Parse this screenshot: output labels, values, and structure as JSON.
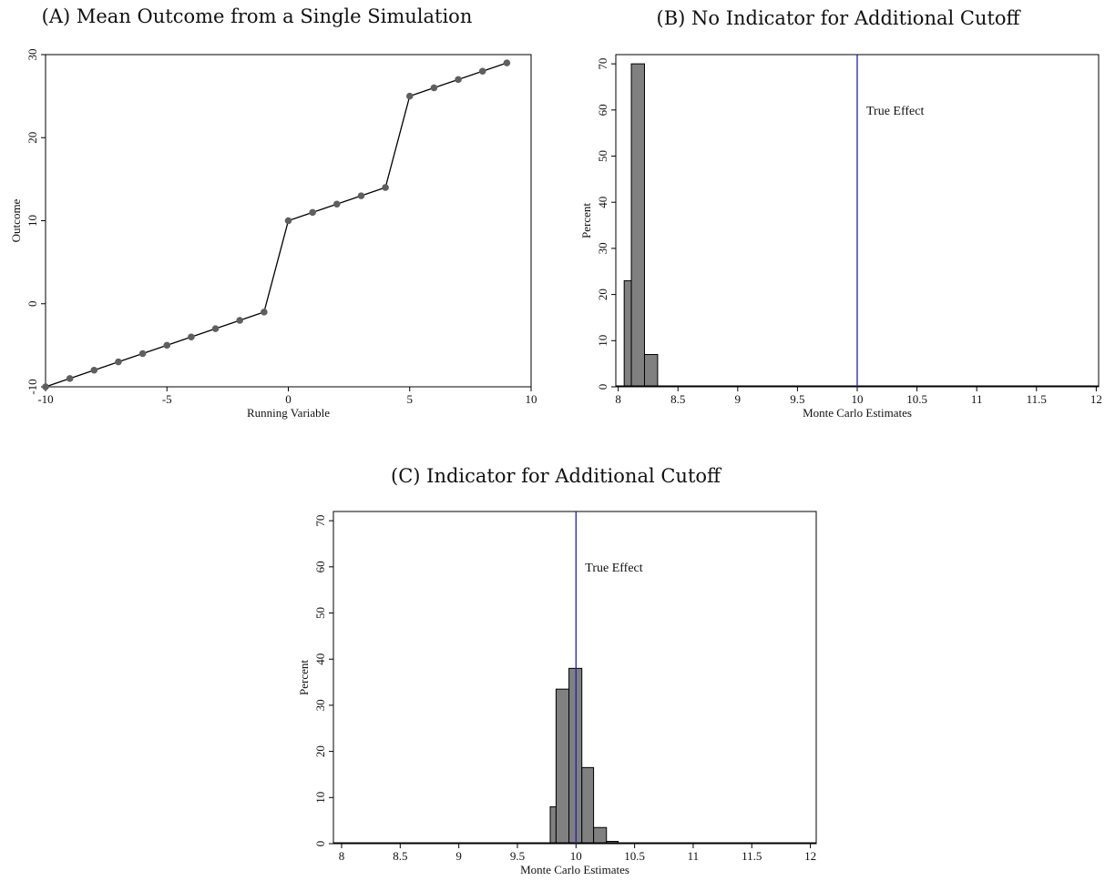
{
  "panels": {
    "a_title": "(A) Mean Outcome from a Single Simulation",
    "b_title": "(B) No Indicator for Additional Cutoff",
    "c_title": "(C) Indicator for Additional Cutoff"
  },
  "colors": {
    "line": "#000000",
    "marker": "#5f5f5f",
    "bar_fill": "#808080",
    "bar_edge": "#000000",
    "ref_line": "#1f1fa8"
  },
  "chart_data": [
    {
      "id": "A",
      "type": "line",
      "title": "(A) Mean Outcome from a Single Simulation",
      "xlabel": "Running Variable",
      "ylabel": "Outcome",
      "xlim": [
        -10,
        10
      ],
      "ylim": [
        -10,
        30
      ],
      "xticks": [
        -10,
        -5,
        0,
        5,
        10
      ],
      "yticks": [
        -10,
        0,
        10,
        20,
        30
      ],
      "x": [
        -10,
        -9,
        -8,
        -7,
        -6,
        -5,
        -4,
        -3,
        -2,
        -1,
        0,
        1,
        2,
        3,
        4,
        5,
        6,
        7,
        8,
        9
      ],
      "y": [
        -10,
        -9,
        -8,
        -7,
        -6,
        -5,
        -4,
        -3,
        -2,
        -1,
        10,
        11,
        12,
        13,
        14,
        25,
        26,
        27,
        28,
        29
      ],
      "grid": false
    },
    {
      "id": "B",
      "type": "bar",
      "title": "(B) No Indicator for Additional Cutoff",
      "xlabel": "Monte Carlo Estimates",
      "ylabel": "Percent",
      "xlim": [
        7.98,
        12.02
      ],
      "ylim": [
        0,
        72
      ],
      "xticks": [
        8,
        8.5,
        9,
        9.5,
        10,
        10.5,
        11,
        11.5,
        12
      ],
      "yticks": [
        0,
        10,
        20,
        30,
        40,
        50,
        60,
        70
      ],
      "bins": [
        {
          "x0": 8.05,
          "x1": 8.11,
          "value": 23
        },
        {
          "x0": 8.11,
          "x1": 8.22,
          "value": 70
        },
        {
          "x0": 8.22,
          "x1": 8.33,
          "value": 7
        }
      ],
      "reference_line": {
        "x": 10,
        "label": "True Effect"
      },
      "grid": false
    },
    {
      "id": "C",
      "type": "bar",
      "title": "(C) Indicator for Additional Cutoff",
      "xlabel": "Monte Carlo Estimates",
      "ylabel": "Percent",
      "xlim": [
        7.93,
        12.05
      ],
      "ylim": [
        0,
        72
      ],
      "xticks": [
        8,
        8.5,
        9,
        9.5,
        10,
        10.5,
        11,
        11.5,
        12
      ],
      "yticks": [
        0,
        10,
        20,
        30,
        40,
        50,
        60,
        70
      ],
      "bins": [
        {
          "x0": 9.78,
          "x1": 9.83,
          "value": 8
        },
        {
          "x0": 9.83,
          "x1": 9.94,
          "value": 33.5
        },
        {
          "x0": 9.94,
          "x1": 10.05,
          "value": 38
        },
        {
          "x0": 10.05,
          "x1": 10.15,
          "value": 16.5
        },
        {
          "x0": 10.15,
          "x1": 10.26,
          "value": 3.5
        },
        {
          "x0": 10.26,
          "x1": 10.36,
          "value": 0.5
        }
      ],
      "reference_line": {
        "x": 10,
        "label": "True Effect"
      },
      "grid": false
    }
  ]
}
